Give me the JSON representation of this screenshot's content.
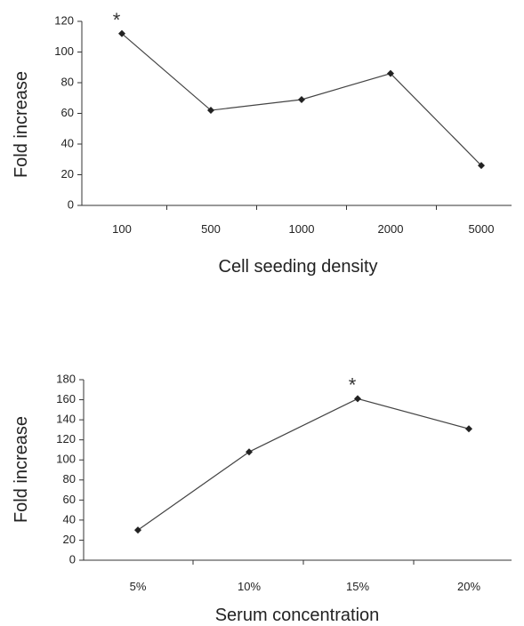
{
  "chart_data": [
    {
      "type": "line",
      "ylabel": "Fold increase",
      "xlabel": "Cell seeding density",
      "categories": [
        "100",
        "500",
        "1000",
        "2000",
        "5000"
      ],
      "values": [
        112,
        62,
        69,
        86,
        26
      ],
      "ylim": [
        0,
        120
      ],
      "yticks": [
        0,
        20,
        40,
        60,
        80,
        100,
        120
      ],
      "annotation": {
        "text": "*",
        "category": "100"
      },
      "grid": false
    },
    {
      "type": "line",
      "ylabel": "Fold increase",
      "xlabel": "Serum concentration",
      "categories": [
        "5%",
        "10%",
        "15%",
        "20%"
      ],
      "values": [
        30,
        108,
        161,
        131
      ],
      "ylim": [
        0,
        180
      ],
      "yticks": [
        0,
        20,
        40,
        60,
        80,
        100,
        120,
        140,
        160,
        180
      ],
      "annotation": {
        "text": "*",
        "category": "15%"
      },
      "grid": false
    }
  ]
}
